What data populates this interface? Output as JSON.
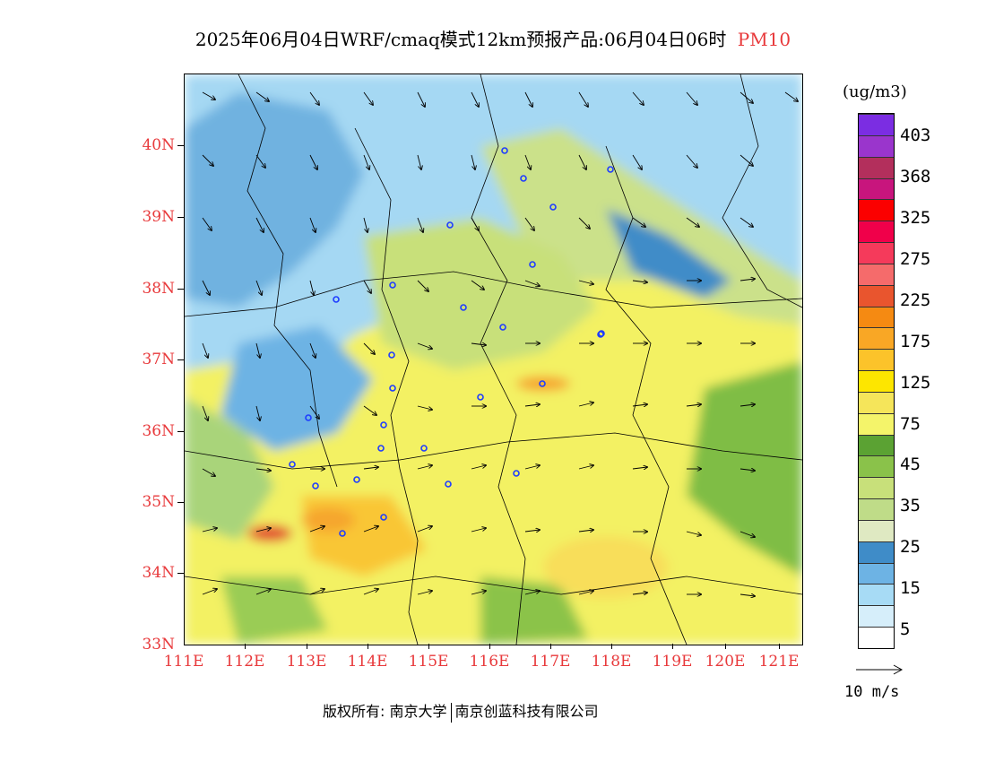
{
  "title": {
    "main": "2025年06月04日WRF/cmaq模式12km预报产品:06月04日06时",
    "pollutant": "PM10"
  },
  "map": {
    "latitude_labels": [
      "40N",
      "39N",
      "38N",
      "37N",
      "36N",
      "35N",
      "34N",
      "33N"
    ],
    "longitude_labels": [
      "111E",
      "112E",
      "113E",
      "114E",
      "115E",
      "116E",
      "117E",
      "118E",
      "119E",
      "120E",
      "121E"
    ]
  },
  "colorbar": {
    "unit": "(ug/m3)",
    "bins": [
      {
        "color": "#ffffff"
      },
      {
        "color": "#d6eefa"
      },
      {
        "color": "#a7dbf5"
      },
      {
        "color": "#6db3e4"
      },
      {
        "color": "#3f8cc8"
      },
      {
        "color": "#dfe9c2"
      },
      {
        "color": "#bfdc88"
      },
      {
        "color": "#c8e07a"
      },
      {
        "color": "#8ac24a"
      },
      {
        "color": "#5ba233"
      },
      {
        "color": "#f4f46a"
      },
      {
        "color": "#f5e55a"
      },
      {
        "color": "#fde600"
      },
      {
        "color": "#fcc32a"
      },
      {
        "color": "#f9a725"
      },
      {
        "color": "#f58a12"
      },
      {
        "color": "#e9552e"
      },
      {
        "color": "#f56b6b"
      },
      {
        "color": "#f53a5b"
      },
      {
        "color": "#f0004a"
      },
      {
        "color": "#fb0000"
      },
      {
        "color": "#c8157d"
      },
      {
        "color": "#b32f5c"
      },
      {
        "color": "#9a35cc"
      },
      {
        "color": "#7b2de2"
      }
    ],
    "labels": [
      "5",
      "15",
      "25",
      "35",
      "45",
      "75",
      "125",
      "175",
      "225",
      "275",
      "325",
      "368",
      "403"
    ]
  },
  "wind_reference": {
    "label": "10 m/s"
  },
  "footer": {
    "copyright_prefix": "版权所有:",
    "owner_1": "南京大学",
    "owner_2": "南京创蓝科技有限公司"
  }
}
